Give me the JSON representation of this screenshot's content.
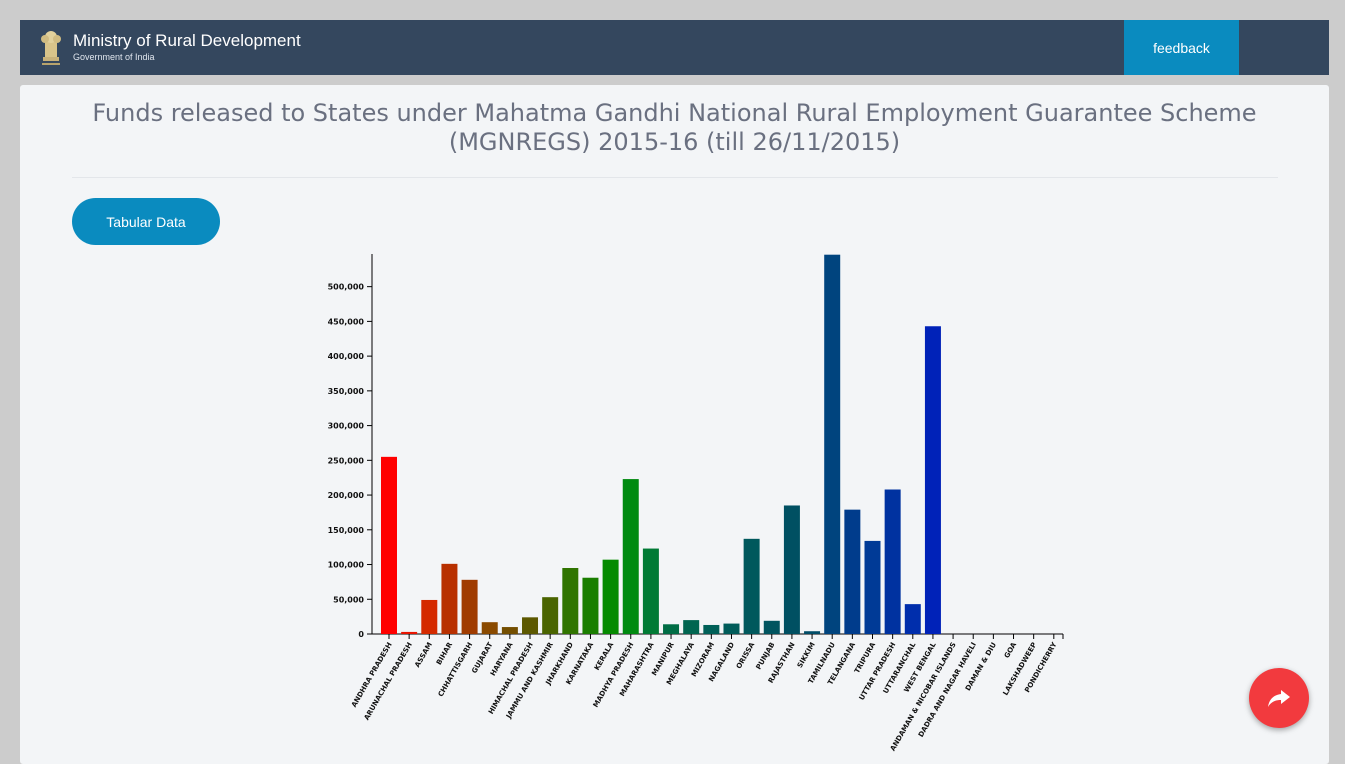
{
  "header": {
    "title": "Ministry of Rural Development",
    "subtitle": "Government of India",
    "feedback_label": "feedback",
    "emblem_icon": "national-emblem-icon"
  },
  "main": {
    "tabular_label": "Tabular Data"
  },
  "share": {
    "icon": "share-arrow-icon"
  },
  "chart_data": {
    "type": "bar",
    "title": "Funds released to States under Mahatma Gandhi National Rural Employment Guarantee Scheme (MGNREGS) 2015-16 (till 26/11/2015)",
    "xlabel": "",
    "ylabel": "",
    "ylim": [
      0,
      547000
    ],
    "yticks": [
      0,
      50000,
      100000,
      150000,
      200000,
      250000,
      300000,
      350000,
      400000,
      450000,
      500000
    ],
    "ytick_labels": [
      "0",
      "50,000",
      "100,000",
      "150,000",
      "200,000",
      "250,000",
      "300,000",
      "350,000",
      "400,000",
      "450,000",
      "500,000"
    ],
    "grid": false,
    "legend": "none",
    "categories": [
      "ANDHRA PRADESH",
      "ARUNACHAL PRADESH",
      "ASSAM",
      "BIHAR",
      "CHHATTISGARH",
      "GUJARAT",
      "HARYANA",
      "HIMACHAL PRADESH",
      "JAMMU AND KASHMIR",
      "JHARKHAND",
      "KARNATAKA",
      "KERALA",
      "MADHYA PRADESH",
      "MAHARASHTRA",
      "MANIPUR",
      "MEGHALAYA",
      "MIZORAM",
      "NAGALAND",
      "ORISSA",
      "PUNJAB",
      "RAJASTHAN",
      "SIKKIM",
      "TAMILNADU",
      "TELANGANA",
      "TRIPURA",
      "UTTAR PRADESH",
      "UTTARANCHAL",
      "WEST BENGAL",
      "ANDAMAN & NICOBAR ISLANDS",
      "DADRA AND NAGAR HAVELI",
      "DAMAN & DIU",
      "GOA",
      "LAKSHADWEEP",
      "PONDICHERRY"
    ],
    "values": [
      255000,
      3000,
      49000,
      101000,
      78000,
      17000,
      10000,
      24000,
      53000,
      95000,
      81000,
      107000,
      223000,
      123000,
      14000,
      20000,
      13000,
      15000,
      137000,
      19000,
      185000,
      4000,
      546000,
      179000,
      134000,
      208000,
      43000,
      443000,
      0,
      0,
      0,
      0,
      0,
      0
    ],
    "colors": [
      "#ff0000",
      "#e81400",
      "#d42a00",
      "#b83000",
      "#a03c00",
      "#8a4a00",
      "#734e00",
      "#5c5800",
      "#4a6400",
      "#307400",
      "#1a7e00",
      "#058a00",
      "#008a10",
      "#007a35",
      "#006d45",
      "#006550",
      "#006058",
      "#005c5a",
      "#00585c",
      "#00545f",
      "#005062",
      "#004c66",
      "#00447e",
      "#003c8c",
      "#003a96",
      "#0032a0",
      "#002eac",
      "#0022b8",
      "#0020c0",
      "#0020c0",
      "#0020c0",
      "#0020c0",
      "#0020c0",
      "#0020c0"
    ]
  }
}
